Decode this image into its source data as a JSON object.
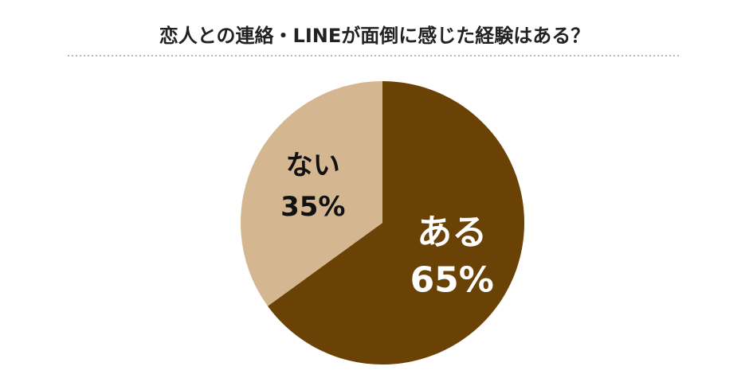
{
  "chart_data": {
    "type": "pie",
    "title": "恋人との連絡・LINEが面倒に感じた経験はある？",
    "categories": [
      "ある",
      "ない"
    ],
    "values": [
      65,
      35
    ],
    "value_labels": [
      "65%",
      "35%"
    ],
    "colors": [
      "#6b4206",
      "#d4b690"
    ]
  }
}
